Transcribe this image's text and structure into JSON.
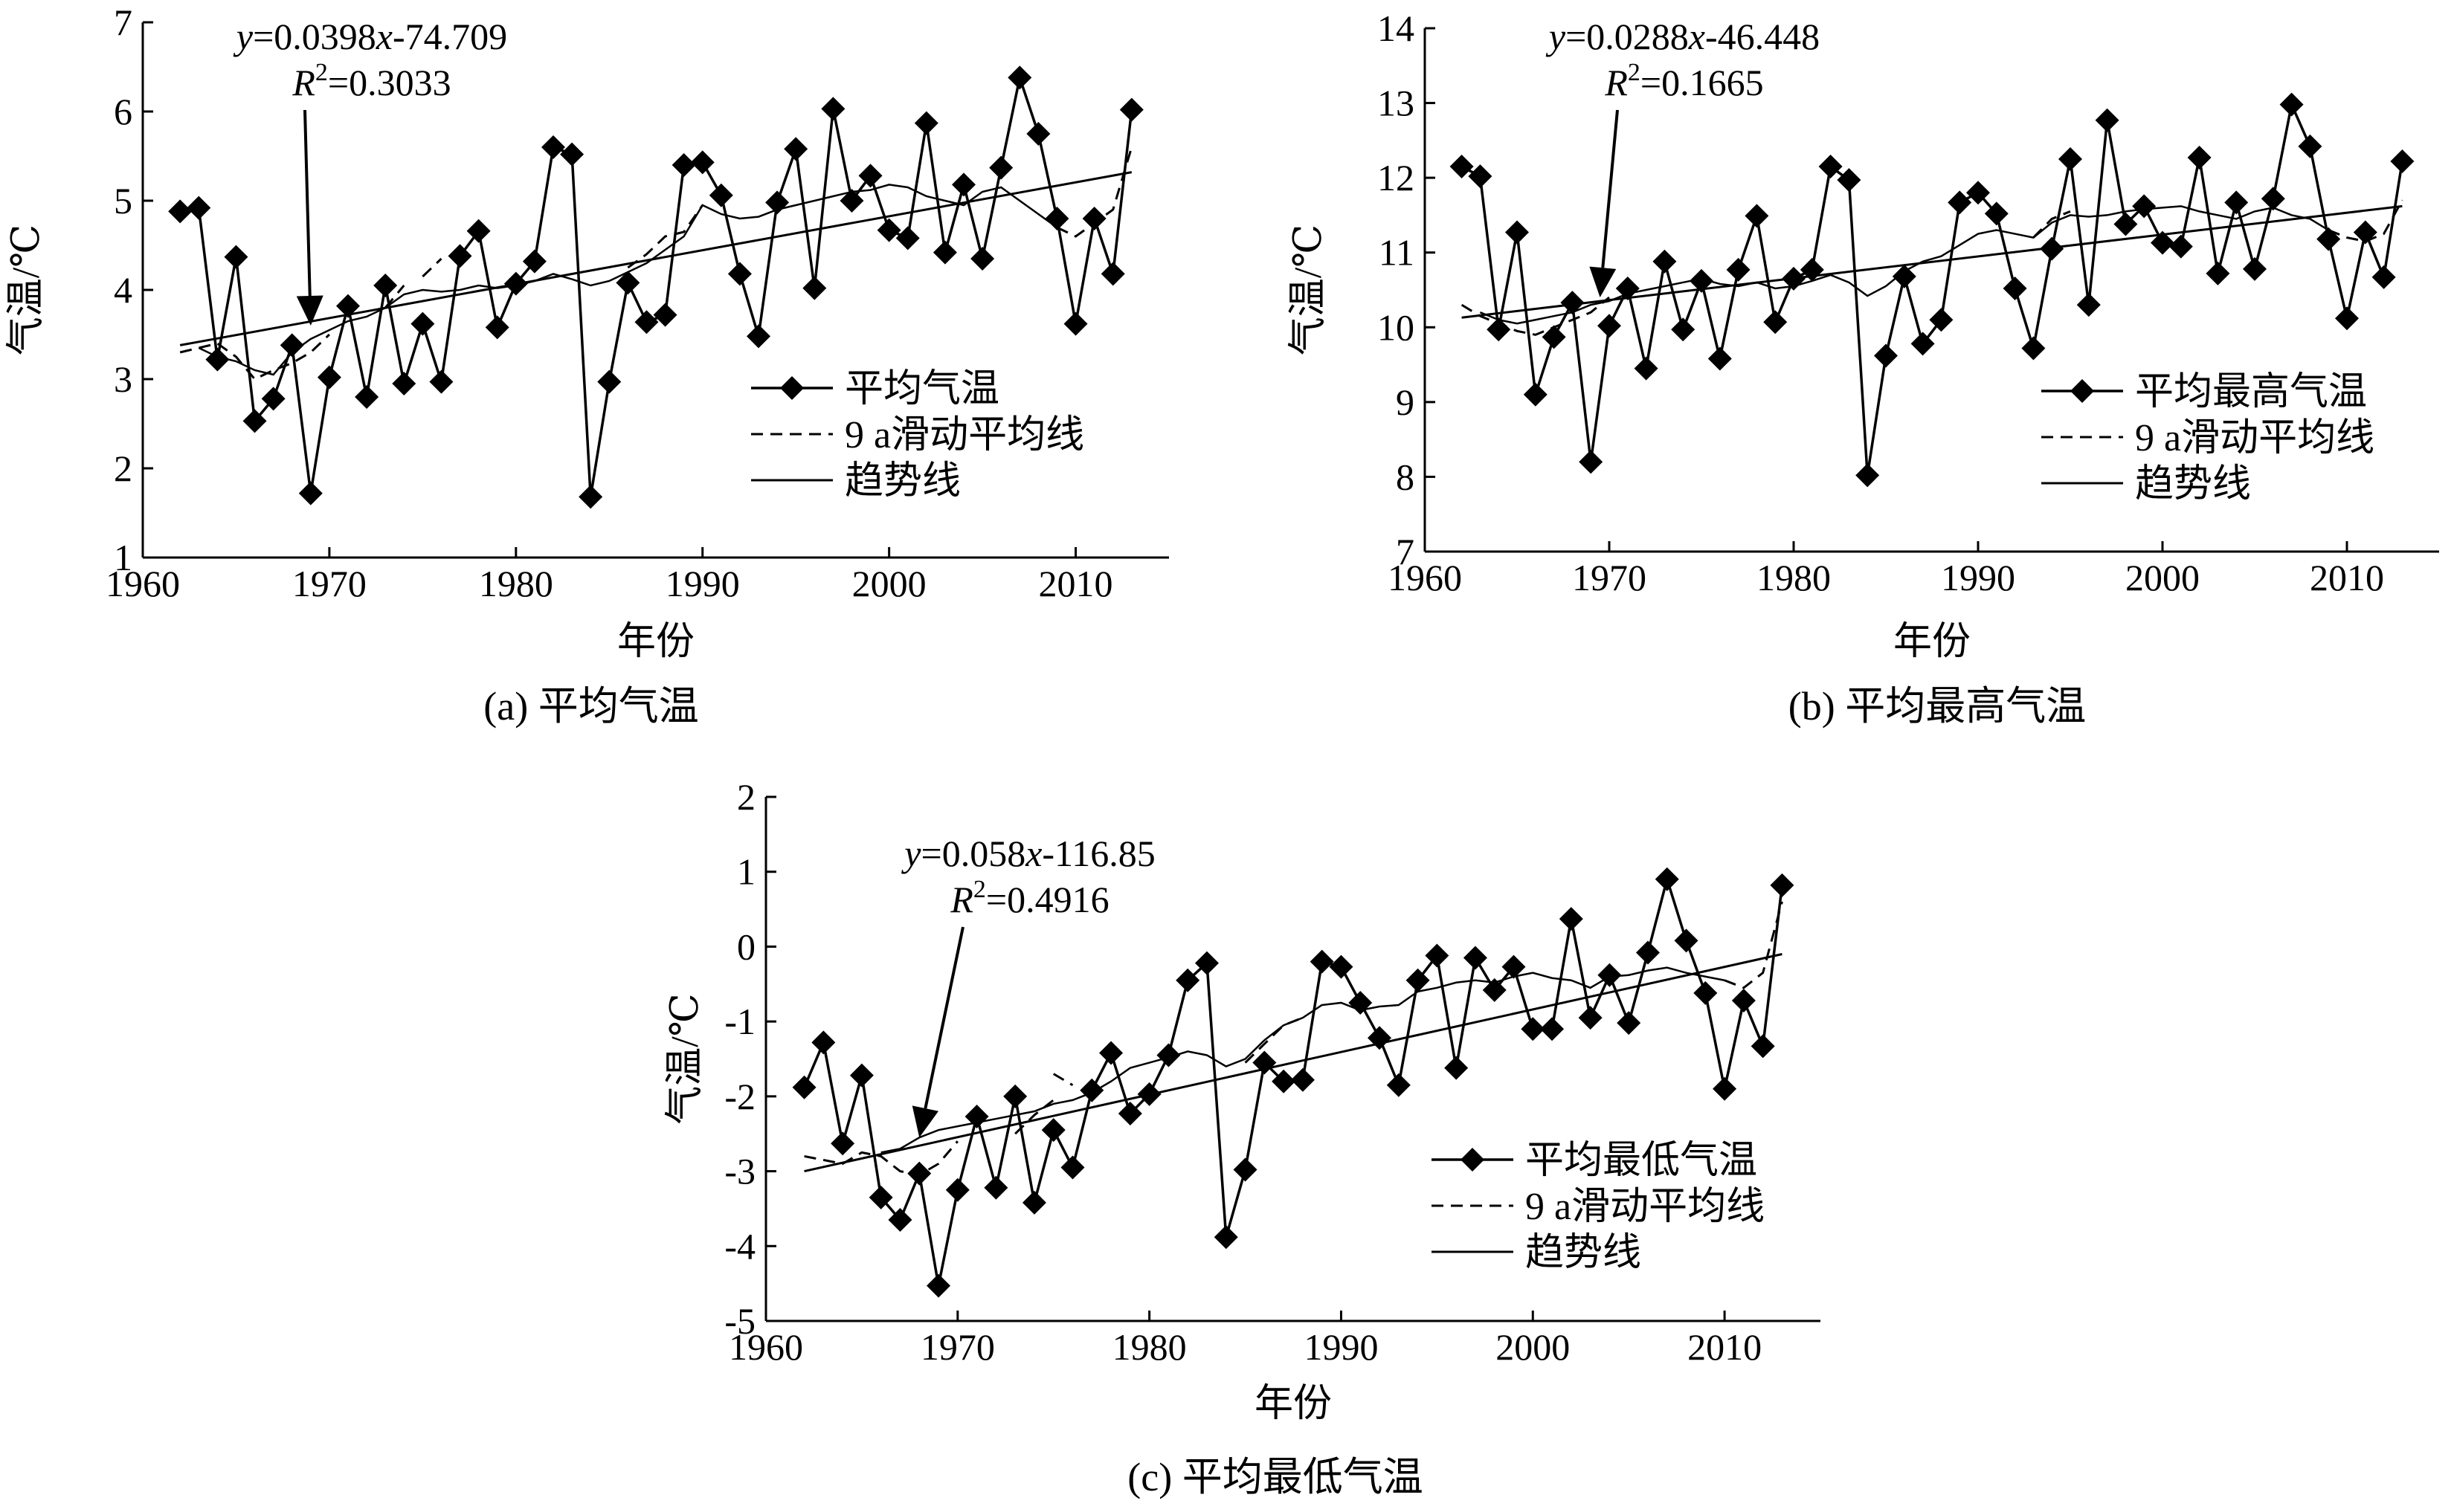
{
  "chart_data": [
    {
      "type": "line",
      "caption": "(a) 平均气温",
      "xlabel": "年份",
      "ylabel": "气温/℃",
      "xlim": [
        1960,
        2015
      ],
      "ylim": [
        1,
        7
      ],
      "xticks": [
        "1960",
        "1970",
        "1980",
        "1990",
        "2000",
        "2010"
      ],
      "yticks": [
        "1",
        "2",
        "3",
        "4",
        "5",
        "6",
        "7"
      ],
      "annotation": {
        "equation_y": "y",
        "equation_rest": "=0.0398",
        "equation_x": "x",
        "equation_tail": "-74.709",
        "r2_R": "R",
        "r2_sup": "2",
        "r2_rest": "=0.3033",
        "arrow_to": [
          1969,
          3.6
        ]
      },
      "legend": [
        "平均气温",
        "9 a滑动平均线",
        "趋势线"
      ],
      "series": [
        {
          "name": "平均气温",
          "x": [
            1962,
            1963,
            1964,
            1965,
            1966,
            1967,
            1968,
            1969,
            1970,
            1971,
            1972,
            1973,
            1974,
            1975,
            1976,
            1977,
            1978,
            1979,
            1980,
            1981,
            1982,
            1983,
            1984,
            1985,
            1986,
            1987,
            1988,
            1989,
            1990,
            1991,
            1992,
            1993,
            1994,
            1995,
            1996,
            1997,
            1998,
            1999,
            2000,
            2001,
            2002,
            2003,
            2004,
            2005,
            2006,
            2007,
            2008,
            2009,
            2010,
            2011,
            2012,
            2013
          ],
          "values": [
            4.88,
            4.92,
            3.22,
            4.37,
            2.53,
            2.78,
            3.38,
            1.72,
            3.02,
            3.82,
            2.8,
            4.05,
            2.95,
            3.62,
            2.97,
            4.38,
            4.66,
            3.58,
            4.07,
            4.32,
            5.6,
            5.52,
            1.68,
            2.97,
            4.08,
            3.64,
            3.72,
            5.4,
            5.43,
            5.06,
            4.18,
            3.48,
            4.98,
            5.58,
            4.02,
            6.03,
            5.0,
            5.28,
            4.67,
            4.58,
            5.87,
            4.42,
            5.18,
            4.35,
            5.37,
            6.38,
            5.75,
            4.8,
            3.62,
            4.8,
            4.18,
            6.02
          ]
        },
        {
          "name": "9 a滑动平均线",
          "segments": [
            {
              "x": [
                1962,
                1963,
                1964,
                1965,
                1966,
                1967,
                1968,
                1969,
                1970
              ],
              "values": [
                3.3,
                3.35,
                3.4,
                3.25,
                3.0,
                3.1,
                3.18,
                3.3,
                3.5
              ]
            },
            {
              "x": [
                1973,
                1974
              ],
              "values": [
                3.8,
                4.05
              ]
            },
            {
              "x": [
                1975,
                1976
              ],
              "values": [
                4.15,
                4.35
              ]
            },
            {
              "x": [
                1986,
                1987,
                1988,
                1989,
                1990
              ],
              "values": [
                4.25,
                4.4,
                4.6,
                4.65,
                4.95
              ]
            },
            {
              "x": [
                2009,
                2010,
                2011,
                2012,
                2013
              ],
              "values": [
                4.7,
                4.6,
                4.75,
                4.9,
                5.6
              ]
            }
          ]
        },
        {
          "name": "9 a滑动平均线-solid",
          "x": [
            1963,
            1964,
            1965,
            1966,
            1967,
            1968,
            1969,
            1970,
            1971,
            1972,
            1973,
            1974,
            1975,
            1976,
            1977,
            1978,
            1979,
            1980,
            1981,
            1982,
            1983,
            1984,
            1985,
            1986,
            1987,
            1988,
            1989,
            1990,
            1991,
            1992,
            1993,
            1994,
            1995,
            1996,
            1997,
            1998,
            1999,
            2000,
            2001,
            2002,
            2003,
            2004,
            2005,
            2006,
            2007,
            2008,
            2009
          ],
          "values": [
            3.35,
            3.25,
            3.2,
            3.1,
            3.05,
            3.3,
            3.45,
            3.55,
            3.65,
            3.7,
            3.8,
            3.95,
            4.0,
            3.98,
            4.0,
            4.05,
            4.02,
            4.05,
            4.1,
            4.18,
            4.12,
            4.05,
            4.1,
            4.2,
            4.3,
            4.45,
            4.6,
            4.95,
            4.85,
            4.8,
            4.82,
            4.9,
            4.95,
            5.0,
            5.05,
            5.1,
            5.12,
            5.18,
            5.15,
            5.05,
            5.0,
            4.95,
            5.1,
            5.15,
            5.0,
            4.85,
            4.7
          ]
        },
        {
          "name": "趋势线",
          "x": [
            1962,
            2013
          ],
          "values": [
            3.38,
            5.32
          ]
        }
      ]
    },
    {
      "type": "line",
      "caption": "(b) 平均最高气温",
      "xlabel": "年份",
      "ylabel": "气温/℃",
      "xlim": [
        1960,
        2015
      ],
      "ylim": [
        7,
        14
      ],
      "xticks": [
        "1960",
        "1970",
        "1980",
        "1990",
        "2000",
        "2010"
      ],
      "yticks": [
        "7",
        "8",
        "9",
        "10",
        "11",
        "12",
        "13",
        "14"
      ],
      "annotation": {
        "equation_y": "y",
        "equation_rest": "=0.0288",
        "equation_x": "x",
        "equation_tail": "-46.448",
        "r2_R": "R",
        "r2_sup": "2",
        "r2_rest": "=0.1665",
        "arrow_to": [
          1969.5,
          10.4
        ]
      },
      "legend": [
        "平均最高气温",
        "9 a滑动平均线",
        "趋势线"
      ],
      "series": [
        {
          "name": "平均最高气温",
          "x": [
            1962,
            1963,
            1964,
            1965,
            1966,
            1967,
            1968,
            1969,
            1970,
            1971,
            1972,
            1973,
            1974,
            1975,
            1976,
            1977,
            1978,
            1979,
            1980,
            1981,
            1982,
            1983,
            1984,
            1985,
            1986,
            1987,
            1988,
            1989,
            1990,
            1991,
            1992,
            1993,
            1994,
            1995,
            1996,
            1997,
            1998,
            1999,
            2000,
            2001,
            2002,
            2003,
            2004,
            2005,
            2006,
            2007,
            2008,
            2009,
            2010,
            2011,
            2012,
            2013
          ],
          "values": [
            12.15,
            12.02,
            9.97,
            11.27,
            9.1,
            9.87,
            10.33,
            8.2,
            10.02,
            10.52,
            9.45,
            10.88,
            9.97,
            10.62,
            9.58,
            10.77,
            11.49,
            10.07,
            10.65,
            10.77,
            12.15,
            11.97,
            8.02,
            9.62,
            10.68,
            9.78,
            10.1,
            11.67,
            11.8,
            11.52,
            10.52,
            9.72,
            11.05,
            12.25,
            10.3,
            12.77,
            11.38,
            11.62,
            11.13,
            11.08,
            12.27,
            10.72,
            11.67,
            10.78,
            11.72,
            12.98,
            12.42,
            11.18,
            10.12,
            11.27,
            10.67,
            12.22
          ]
        },
        {
          "name": "9 a滑动平均线",
          "segments": [
            {
              "x": [
                1962,
                1963,
                1964,
                1965,
                1966,
                1967,
                1968,
                1969,
                1970
              ],
              "values": [
                10.3,
                10.15,
                10.05,
                9.95,
                9.9,
                10.0,
                10.1,
                10.2,
                10.4
              ]
            },
            {
              "x": [
                1993,
                1994,
                1995
              ],
              "values": [
                11.2,
                11.45,
                11.55
              ]
            },
            {
              "x": [
                2009,
                2010,
                2011,
                2012,
                2013
              ],
              "values": [
                11.3,
                11.2,
                11.15,
                11.25,
                11.7
              ]
            }
          ]
        },
        {
          "name": "9 a滑动平均线-solid",
          "x": [
            1963,
            1964,
            1965,
            1966,
            1967,
            1968,
            1969,
            1970,
            1971,
            1972,
            1973,
            1974,
            1975,
            1976,
            1977,
            1978,
            1979,
            1980,
            1981,
            1982,
            1983,
            1984,
            1985,
            1986,
            1987,
            1988,
            1989,
            1990,
            1991,
            1992,
            1993,
            1994,
            1995,
            1996,
            1997,
            1998,
            1999,
            2000,
            2001,
            2002,
            2003,
            2004,
            2005,
            2006,
            2007,
            2008,
            2009
          ],
          "values": [
            10.2,
            10.1,
            10.05,
            10.1,
            10.15,
            10.2,
            10.3,
            10.35,
            10.45,
            10.5,
            10.55,
            10.6,
            10.65,
            10.58,
            10.55,
            10.6,
            10.52,
            10.55,
            10.62,
            10.7,
            10.6,
            10.42,
            10.55,
            10.75,
            10.88,
            10.95,
            11.1,
            11.25,
            11.3,
            11.25,
            11.2,
            11.4,
            11.5,
            11.48,
            11.5,
            11.55,
            11.58,
            11.6,
            11.62,
            11.55,
            11.5,
            11.45,
            11.55,
            11.6,
            11.5,
            11.45,
            11.3
          ]
        },
        {
          "name": "趋势线",
          "x": [
            1962,
            2013
          ],
          "values": [
            10.13,
            11.62
          ]
        }
      ]
    },
    {
      "type": "line",
      "caption": "(c) 平均最低气温",
      "xlabel": "年份",
      "ylabel": "气温/℃",
      "xlim": [
        1960,
        2015
      ],
      "ylim": [
        -5,
        2
      ],
      "xticks": [
        "1960",
        "1970",
        "1980",
        "1990",
        "2000",
        "2010"
      ],
      "yticks": [
        "-5",
        "-4",
        "-3",
        "-2",
        "-1",
        "0",
        "1",
        "2"
      ],
      "annotation": {
        "equation_y": "y",
        "equation_rest": "=0.058",
        "equation_x": "x",
        "equation_tail": "-116.85",
        "r2_R": "R",
        "r2_sup": "2",
        "r2_rest": "=0.4916",
        "arrow_to": [
          1968,
          -2.55
        ]
      },
      "legend": [
        "平均最低气温",
        "9 a滑动平均线",
        "趋势线"
      ],
      "series": [
        {
          "name": "平均最低气温",
          "x": [
            1962,
            1963,
            1964,
            1965,
            1966,
            1967,
            1968,
            1969,
            1970,
            1971,
            1972,
            1973,
            1974,
            1975,
            1976,
            1977,
            1978,
            1979,
            1980,
            1981,
            1982,
            1983,
            1984,
            1985,
            1986,
            1987,
            1988,
            1989,
            1990,
            1991,
            1992,
            1993,
            1994,
            1995,
            1996,
            1997,
            1998,
            1999,
            2000,
            2001,
            2002,
            2003,
            2004,
            2005,
            2006,
            2007,
            2008,
            2009,
            2010,
            2011,
            2012,
            2013
          ],
          "values": [
            -1.88,
            -1.28,
            -2.63,
            -1.72,
            -3.35,
            -3.65,
            -3.03,
            -4.53,
            -3.25,
            -2.27,
            -3.22,
            -2.0,
            -3.42,
            -2.45,
            -2.95,
            -1.92,
            -1.42,
            -2.23,
            -1.97,
            -1.45,
            -0.45,
            -0.22,
            -3.88,
            -2.98,
            -1.55,
            -1.8,
            -1.78,
            -0.2,
            -0.27,
            -0.75,
            -1.22,
            -1.85,
            -0.45,
            -0.12,
            -1.62,
            -0.15,
            -0.58,
            -0.27,
            -1.1,
            -1.1,
            0.37,
            -0.95,
            -0.38,
            -1.02,
            -0.08,
            0.9,
            0.08,
            -0.62,
            -1.9,
            -0.72,
            -1.33,
            0.82
          ]
        },
        {
          "name": "9 a滑动平均线",
          "segments": [
            {
              "x": [
                1962,
                1963,
                1964,
                1965,
                1966,
                1967,
                1968,
                1969,
                1970
              ],
              "values": [
                -2.8,
                -2.85,
                -2.9,
                -2.75,
                -2.8,
                -3.0,
                -3.05,
                -2.9,
                -2.6
              ]
            },
            {
              "x": [
                1973,
                1974,
                1975
              ],
              "values": [
                -2.5,
                -2.25,
                -2.05
              ]
            },
            {
              "x": [
                1975,
                1976
              ],
              "values": [
                -1.7,
                -1.85
              ]
            },
            {
              "x": [
                1985,
                1986,
                1987,
                1988
              ],
              "values": [
                -1.55,
                -1.3,
                -1.05,
                -0.95
              ]
            },
            {
              "x": [
                2010,
                2011,
                2012,
                2013
              ],
              "values": [
                -0.45,
                -0.55,
                -0.35,
                0.6
              ]
            }
          ]
        },
        {
          "name": "9 a滑动平均线-solid",
          "x": [
            1966,
            1967,
            1968,
            1969,
            1970,
            1971,
            1972,
            1973,
            1974,
            1975,
            1976,
            1977,
            1978,
            1979,
            1980,
            1981,
            1982,
            1983,
            1984,
            1985,
            1986,
            1987,
            1988,
            1989,
            1990,
            1991,
            1992,
            1993,
            1994,
            1995,
            1996,
            1997,
            1998,
            1999,
            2000,
            2001,
            2002,
            2003,
            2004,
            2005,
            2006,
            2007,
            2008,
            2009,
            2010
          ],
          "values": [
            -2.75,
            -2.7,
            -2.55,
            -2.45,
            -2.4,
            -2.35,
            -2.3,
            -2.25,
            -2.2,
            -2.1,
            -2.05,
            -1.95,
            -1.8,
            -1.62,
            -1.55,
            -1.48,
            -1.4,
            -1.45,
            -1.6,
            -1.5,
            -1.25,
            -1.05,
            -0.95,
            -0.78,
            -0.75,
            -0.85,
            -0.8,
            -0.78,
            -0.6,
            -0.55,
            -0.48,
            -0.45,
            -0.48,
            -0.4,
            -0.35,
            -0.42,
            -0.45,
            -0.55,
            -0.4,
            -0.38,
            -0.32,
            -0.28,
            -0.35,
            -0.4,
            -0.45
          ]
        },
        {
          "name": "趋势线",
          "x": [
            1962,
            2013
          ],
          "values": [
            -3.0,
            -0.1
          ]
        }
      ]
    }
  ]
}
